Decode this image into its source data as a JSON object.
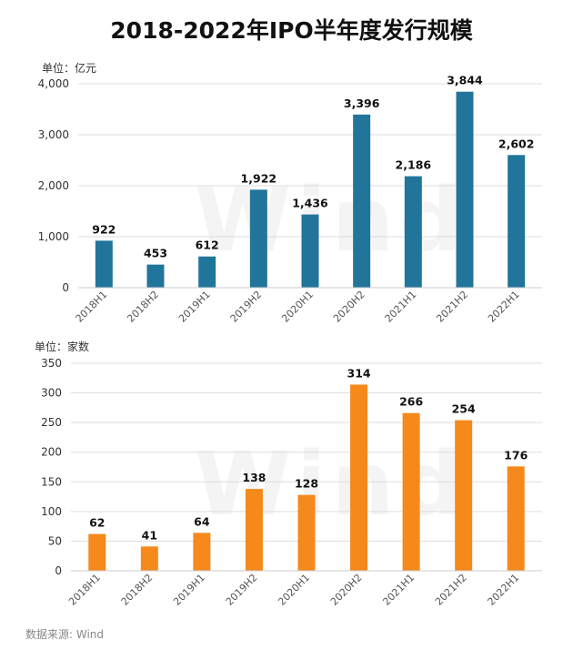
{
  "title": "2018-2022年IPO半年度发行规模",
  "source": "数据来源: Wind",
  "watermark": "Wind",
  "chart_data": [
    {
      "type": "bar",
      "unit_label": "单位：亿元",
      "categories": [
        "2018H1",
        "2018H2",
        "2019H1",
        "2019H2",
        "2020H1",
        "2020H2",
        "2021H1",
        "2021H2",
        "2022H1"
      ],
      "values": [
        922,
        453,
        612,
        1922,
        1436,
        3396,
        2186,
        3844,
        2602
      ],
      "data_labels": [
        "922",
        "453",
        "612",
        "1,922",
        "1,436",
        "3,396",
        "2,186",
        "3,844",
        "2,602"
      ],
      "yticks": [
        "0",
        "1,000",
        "2,000",
        "3,000",
        "4,000"
      ],
      "ytick_values": [
        0,
        1000,
        2000,
        3000,
        4000
      ],
      "ylim": [
        0,
        4000
      ],
      "color": "#21759b"
    },
    {
      "type": "bar",
      "unit_label": "单位：家数",
      "categories": [
        "2018H1",
        "2018H2",
        "2019H1",
        "2019H2",
        "2020H1",
        "2020H2",
        "2021H1",
        "2021H2",
        "2022H1"
      ],
      "values": [
        62,
        41,
        64,
        138,
        128,
        314,
        266,
        254,
        176
      ],
      "data_labels": [
        "62",
        "41",
        "64",
        "138",
        "128",
        "314",
        "266",
        "254",
        "176"
      ],
      "yticks": [
        "0",
        "50",
        "100",
        "150",
        "200",
        "250",
        "300",
        "350"
      ],
      "ytick_values": [
        0,
        50,
        100,
        150,
        200,
        250,
        300,
        350
      ],
      "ylim": [
        0,
        350
      ],
      "color": "#f5891b"
    }
  ]
}
